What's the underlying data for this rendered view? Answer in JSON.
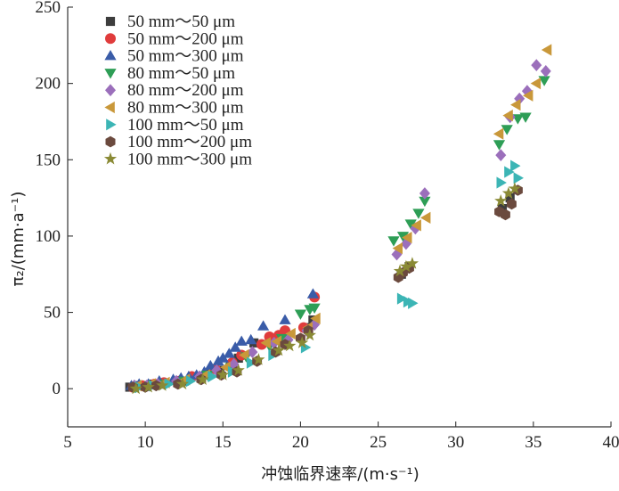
{
  "chart_data": {
    "type": "scatter",
    "xlabel": "冲蚀临界速率/(m·s⁻¹)",
    "ylabel": "π₂/(mm·a⁻¹)",
    "xlim": [
      5,
      40
    ],
    "ylim": [
      -25,
      250
    ],
    "xticks": [
      5,
      10,
      15,
      20,
      25,
      30,
      35,
      40
    ],
    "yticks": [
      0,
      50,
      100,
      150,
      200,
      250
    ],
    "grid": false,
    "legend_position": "top-left",
    "series": [
      {
        "name": "50 mm～50 μm",
        "marker": "square",
        "color": "#3d3d3d",
        "points": [
          [
            9.0,
            1
          ],
          [
            9.5,
            2
          ],
          [
            10.0,
            2
          ],
          [
            10.5,
            3
          ],
          [
            11.0,
            3
          ],
          [
            12.5,
            5
          ],
          [
            14.0,
            10
          ],
          [
            14.8,
            12
          ],
          [
            15.5,
            15
          ],
          [
            16.0,
            20
          ],
          [
            17.0,
            30
          ],
          [
            18.0,
            33
          ],
          [
            18.5,
            32
          ],
          [
            19.0,
            37
          ],
          [
            20.3,
            40
          ],
          [
            20.8,
            45
          ],
          [
            26.5,
            75
          ],
          [
            27.0,
            80
          ],
          [
            33.0,
            118
          ],
          [
            33.5,
            125
          ]
        ]
      },
      {
        "name": "50 mm～200 μm",
        "marker": "circle",
        "color": "#e03c3c",
        "points": [
          [
            9.2,
            1
          ],
          [
            9.8,
            2
          ],
          [
            10.6,
            3
          ],
          [
            11.2,
            4
          ],
          [
            12.2,
            5
          ],
          [
            13.0,
            8
          ],
          [
            14.5,
            13
          ],
          [
            15.6,
            17
          ],
          [
            16.2,
            22
          ],
          [
            17.5,
            29
          ],
          [
            18.0,
            34
          ],
          [
            18.6,
            35
          ],
          [
            19.0,
            38
          ],
          [
            20.2,
            40
          ],
          [
            20.9,
            60
          ]
        ]
      },
      {
        "name": "50 mm～300 μm",
        "marker": "triangle-up",
        "color": "#3a5ca8",
        "points": [
          [
            9.1,
            2
          ],
          [
            9.6,
            3
          ],
          [
            10.2,
            3
          ],
          [
            10.9,
            5
          ],
          [
            11.8,
            6
          ],
          [
            12.3,
            7
          ],
          [
            12.8,
            8
          ],
          [
            13.3,
            9
          ],
          [
            13.8,
            11
          ],
          [
            14.2,
            15
          ],
          [
            14.7,
            18
          ],
          [
            15.0,
            20
          ],
          [
            15.4,
            23
          ],
          [
            15.8,
            27
          ],
          [
            16.2,
            31
          ],
          [
            16.8,
            32
          ],
          [
            17.6,
            41
          ],
          [
            19.0,
            45
          ],
          [
            20.8,
            62
          ]
        ]
      },
      {
        "name": "80 mm～50 μm",
        "marker": "triangle-down",
        "color": "#2e9e56",
        "points": [
          [
            9.4,
            1
          ],
          [
            10.3,
            2
          ],
          [
            11.0,
            3
          ],
          [
            12.5,
            5
          ],
          [
            14.0,
            9
          ],
          [
            15.5,
            14
          ],
          [
            16.5,
            21
          ],
          [
            18.0,
            28
          ],
          [
            18.8,
            33
          ],
          [
            20.0,
            49
          ],
          [
            20.6,
            52
          ],
          [
            20.9,
            53
          ],
          [
            26.0,
            97
          ],
          [
            26.6,
            100
          ],
          [
            27.1,
            108
          ],
          [
            27.6,
            115
          ],
          [
            28.0,
            123
          ],
          [
            32.8,
            160
          ],
          [
            33.3,
            170
          ],
          [
            34.0,
            177
          ],
          [
            34.5,
            178
          ],
          [
            35.7,
            202
          ]
        ]
      },
      {
        "name": "80 mm～200 μm",
        "marker": "diamond",
        "color": "#9b6fbb",
        "points": [
          [
            9.3,
            2
          ],
          [
            10.1,
            2
          ],
          [
            10.8,
            3
          ],
          [
            12.0,
            5
          ],
          [
            13.5,
            8
          ],
          [
            14.6,
            12
          ],
          [
            15.7,
            16
          ],
          [
            16.9,
            24
          ],
          [
            18.3,
            30
          ],
          [
            19.2,
            32
          ],
          [
            20.4,
            38
          ],
          [
            20.9,
            42
          ],
          [
            26.2,
            88
          ],
          [
            26.8,
            95
          ],
          [
            27.4,
            105
          ],
          [
            28.0,
            128
          ],
          [
            32.9,
            153
          ],
          [
            33.5,
            178
          ],
          [
            34.1,
            190
          ],
          [
            34.6,
            195
          ],
          [
            35.2,
            212
          ],
          [
            35.8,
            208
          ]
        ]
      },
      {
        "name": "80 mm～300 μm",
        "marker": "triangle-left",
        "color": "#c9983a",
        "points": [
          [
            9.5,
            2
          ],
          [
            10.4,
            3
          ],
          [
            11.3,
            4
          ],
          [
            12.6,
            6
          ],
          [
            13.9,
            9
          ],
          [
            15.2,
            14
          ],
          [
            16.4,
            22
          ],
          [
            17.8,
            30
          ],
          [
            18.5,
            31
          ],
          [
            19.4,
            36
          ],
          [
            20.5,
            40
          ],
          [
            21.0,
            46
          ],
          [
            26.3,
            92
          ],
          [
            26.9,
            99
          ],
          [
            27.5,
            107
          ],
          [
            28.1,
            112
          ],
          [
            32.8,
            167
          ],
          [
            33.4,
            179
          ],
          [
            33.9,
            186
          ],
          [
            34.7,
            192
          ],
          [
            35.2,
            200
          ],
          [
            35.9,
            222
          ]
        ]
      },
      {
        "name": "100 mm～50 μm",
        "marker": "triangle-right",
        "color": "#3cb5b5",
        "points": [
          [
            9.6,
            1
          ],
          [
            10.5,
            2
          ],
          [
            11.5,
            3
          ],
          [
            12.9,
            5
          ],
          [
            14.3,
            8
          ],
          [
            15.6,
            11
          ],
          [
            16.8,
            17
          ],
          [
            18.2,
            22
          ],
          [
            20.3,
            27
          ],
          [
            26.5,
            59
          ],
          [
            26.9,
            57
          ],
          [
            27.2,
            56
          ],
          [
            32.9,
            135
          ],
          [
            33.4,
            142
          ],
          [
            33.8,
            146
          ],
          [
            34.0,
            138
          ]
        ]
      },
      {
        "name": "100 mm～200 μm",
        "marker": "hexagon",
        "color": "#6b4a3e",
        "points": [
          [
            9.2,
            1
          ],
          [
            10.0,
            1
          ],
          [
            10.7,
            2
          ],
          [
            12.1,
            3
          ],
          [
            13.6,
            6
          ],
          [
            14.9,
            9
          ],
          [
            15.9,
            11
          ],
          [
            17.2,
            18
          ],
          [
            18.4,
            24
          ],
          [
            19.0,
            29
          ],
          [
            20.0,
            33
          ],
          [
            20.5,
            38
          ],
          [
            26.3,
            73
          ],
          [
            26.6,
            76
          ],
          [
            27.0,
            79
          ],
          [
            32.8,
            116
          ],
          [
            33.2,
            114
          ],
          [
            33.6,
            121
          ],
          [
            34.0,
            130
          ]
        ]
      },
      {
        "name": "100 mm～300 μm",
        "marker": "star",
        "color": "#8a8a35",
        "points": [
          [
            9.4,
            0
          ],
          [
            10.2,
            1
          ],
          [
            11.1,
            2
          ],
          [
            12.4,
            3
          ],
          [
            13.7,
            6
          ],
          [
            15.0,
            9
          ],
          [
            16.0,
            12
          ],
          [
            17.3,
            19
          ],
          [
            18.6,
            25
          ],
          [
            19.3,
            28
          ],
          [
            20.1,
            30
          ],
          [
            20.6,
            35
          ],
          [
            26.4,
            77
          ],
          [
            26.8,
            80
          ],
          [
            27.2,
            82
          ],
          [
            32.9,
            123
          ],
          [
            33.4,
            128
          ],
          [
            33.8,
            131
          ]
        ]
      }
    ]
  }
}
